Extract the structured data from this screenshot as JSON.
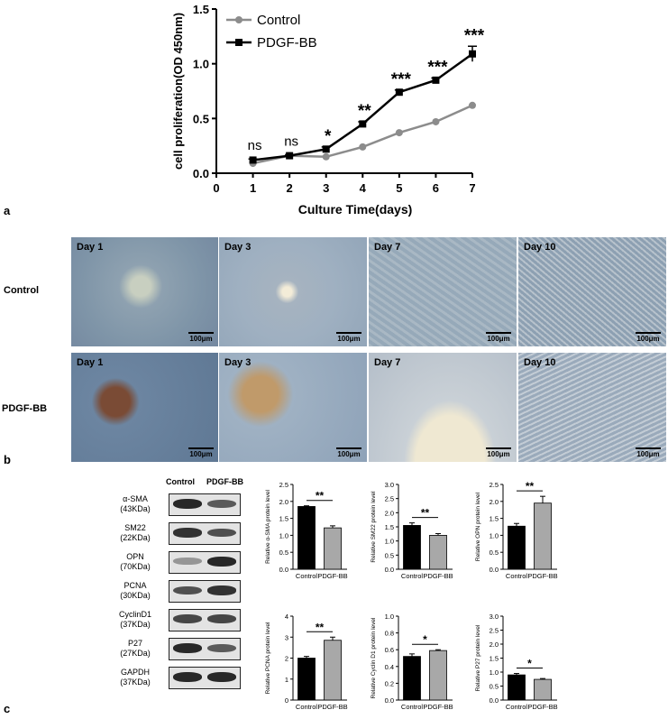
{
  "panel_a": {
    "letter": "a",
    "legend": {
      "control": "Control",
      "pdgf": "PDGF-BB"
    },
    "chart_data": {
      "type": "line",
      "xlabel": "Culture Time(days)",
      "ylabel": "cell proliferation(OD 450nm)",
      "xlim": [
        0,
        7
      ],
      "ylim": [
        0,
        1.5
      ],
      "x_ticks": [
        "0",
        "1",
        "2",
        "3",
        "4",
        "5",
        "6",
        "7"
      ],
      "y_ticks": [
        "0.0",
        "0.5",
        "1.0",
        "1.5"
      ],
      "x": [
        1,
        2,
        3,
        4,
        5,
        6,
        7
      ],
      "series": [
        {
          "name": "Control",
          "color": "#8c8c8c",
          "marker": "circle",
          "values": [
            0.09,
            0.16,
            0.15,
            0.24,
            0.37,
            0.47,
            0.62
          ]
        },
        {
          "name": "PDGF-BB",
          "color": "#000000",
          "marker": "square",
          "values": [
            0.12,
            0.16,
            0.22,
            0.45,
            0.74,
            0.85,
            1.09
          ],
          "errors": [
            0.01,
            0.01,
            0.02,
            0.02,
            0.02,
            0.02,
            0.07
          ]
        }
      ],
      "annotations": [
        "ns",
        "ns",
        "*",
        "**",
        "***",
        "***",
        "***"
      ]
    }
  },
  "panel_b": {
    "letter": "b",
    "rows": [
      "Control",
      "PDGF-BB"
    ],
    "days": [
      "Day 1",
      "Day 3",
      "Day 7",
      "Day 10"
    ],
    "scale": "100μm"
  },
  "panel_c": {
    "letter": "c",
    "columns": [
      "Control",
      "PDGF-BB"
    ],
    "blots": [
      {
        "name": "α-SMA",
        "kda": "(43KDa)"
      },
      {
        "name": "SM22",
        "kda": "(22KDa)"
      },
      {
        "name": "OPN",
        "kda": "(70KDa)"
      },
      {
        "name": "PCNA",
        "kda": "(30KDa)"
      },
      {
        "name": "CyclinD1",
        "kda": "(37KDa)"
      },
      {
        "name": "P27",
        "kda": "(27KDa)"
      },
      {
        "name": "GAPDH",
        "kda": "(37KDa)"
      }
    ],
    "chart_data": [
      {
        "type": "bar",
        "ylabel": "Relative α-SMA protein level",
        "categories": [
          "Control",
          "PDGF-BB"
        ],
        "values": [
          1.85,
          1.22
        ],
        "errors": [
          0.02,
          0.06
        ],
        "ylim": [
          0,
          2.5
        ],
        "y_ticks": [
          "0.0",
          "0.5",
          "1.0",
          "1.5",
          "2.0",
          "2.5"
        ],
        "significance": "**"
      },
      {
        "type": "bar",
        "ylabel": "Relative SM22 protein level",
        "categories": [
          "Control",
          "PDGF-BB"
        ],
        "values": [
          1.55,
          1.2
        ],
        "errors": [
          0.09,
          0.06
        ],
        "ylim": [
          0,
          3.0
        ],
        "y_ticks": [
          "0.0",
          "0.5",
          "1.0",
          "1.5",
          "2.0",
          "2.5",
          "3.0"
        ],
        "significance": "**"
      },
      {
        "type": "bar",
        "ylabel": "Relative OPN protein level",
        "categories": [
          "Control",
          "PDGF-BB"
        ],
        "values": [
          1.27,
          1.95
        ],
        "errors": [
          0.08,
          0.2
        ],
        "ylim": [
          0,
          2.5
        ],
        "y_ticks": [
          "0.0",
          "0.5",
          "1.0",
          "1.5",
          "2.0",
          "2.5"
        ],
        "significance": "**"
      },
      {
        "type": "bar",
        "ylabel": "Relative PCNA protein level",
        "categories": [
          "Control",
          "PDGF-BB"
        ],
        "values": [
          2.0,
          2.85
        ],
        "errors": [
          0.08,
          0.15
        ],
        "ylim": [
          0,
          4
        ],
        "y_ticks": [
          "0",
          "1",
          "2",
          "3",
          "4"
        ],
        "significance": "**"
      },
      {
        "type": "bar",
        "ylabel": "Relative Cyclin D1 protein level",
        "categories": [
          "Control",
          "PDGF-BB"
        ],
        "values": [
          0.52,
          0.59
        ],
        "errors": [
          0.03,
          0.01
        ],
        "ylim": [
          0,
          1.0
        ],
        "y_ticks": [
          "0.0",
          "0.2",
          "0.4",
          "0.6",
          "0.8",
          "1.0"
        ],
        "significance": "*"
      },
      {
        "type": "bar",
        "ylabel": "Relative P27 protein level",
        "categories": [
          "Control",
          "PDGF-BB"
        ],
        "values": [
          0.9,
          0.74
        ],
        "errors": [
          0.05,
          0.03
        ],
        "ylim": [
          0,
          3.0
        ],
        "y_ticks": [
          "0.0",
          "0.5",
          "1.0",
          "1.5",
          "2.0",
          "2.5",
          "3.0"
        ],
        "significance": "*"
      }
    ]
  }
}
